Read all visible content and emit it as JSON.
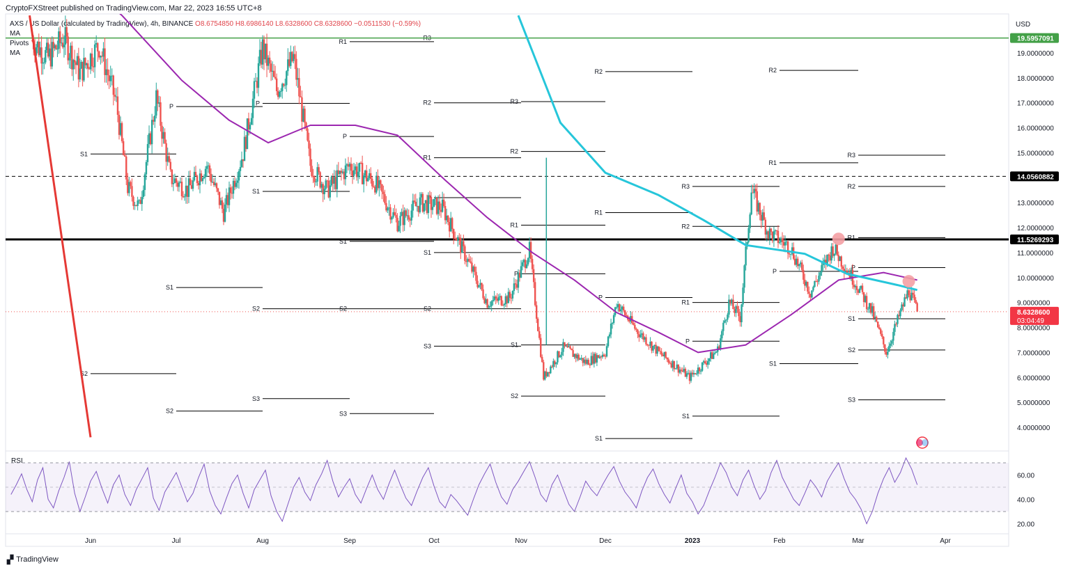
{
  "header": {
    "publisher": "CryptoFXStreet published on TradingView.com, Mar 22, 2023 16:55 UTC+8"
  },
  "legend": {
    "symbol": "AXS / US Dollar (calculated by TradingView), 4h, BINANCE",
    "open": "O8.6754850",
    "high": "H8.6986140",
    "low": "L8.6328600",
    "close": "C8.6328600",
    "change": "−0.0511530 (−0.59%)",
    "indicators": [
      "MA",
      "Pivots",
      "MA"
    ]
  },
  "axis": {
    "currency": "USD"
  },
  "price_labels": {
    "green_level": "19.5957091",
    "dashed_level": "14.0560882",
    "black_level": "11.5269293",
    "last_price": "8.6328600",
    "countdown": "03:04:49"
  },
  "footer": {
    "brand": "TradingView"
  },
  "colors": {
    "green_line": "#43a047",
    "black_line": "#000000",
    "ma_fast": "#9c27b0",
    "ma_slow": "#26c6da",
    "trendline": "#e53935",
    "candle_up": "#26a69a",
    "candle_down": "#ef5350",
    "rsi": "#7e57c2",
    "price_label_bg": "#f23645",
    "marker": "#f4a0a4"
  },
  "chart_data": {
    "type": "candlestick",
    "symbol": "AXS / US Dollar",
    "timeframe": "4h",
    "exchange": "BINANCE",
    "x_tick_labels": [
      "Jun",
      "Jul",
      "Aug",
      "Sep",
      "Oct",
      "Nov",
      "Dec",
      "2023",
      "Feb",
      "Mar",
      "Apr"
    ],
    "y_tick_labels": [
      "4.0000000",
      "5.0000000",
      "6.0000000",
      "7.0000000",
      "8.0000000",
      "9.0000000",
      "10.0000000",
      "11.0000000",
      "12.0000000",
      "13.0000000",
      "15.0000000",
      "16.0000000",
      "17.0000000",
      "18.0000000",
      "19.0000000"
    ],
    "ylim": [
      3.2,
      20.2
    ],
    "horizontal_levels": [
      {
        "value": 19.5957091,
        "style": "solid-green"
      },
      {
        "value": 14.0560882,
        "style": "dashed-black"
      },
      {
        "value": 11.5269293,
        "style": "solid-black-thick"
      },
      {
        "value": 8.63286,
        "style": "dotted-red"
      }
    ],
    "ma_slow": [
      {
        "date": "2022-10-31",
        "value": 20.5
      },
      {
        "date": "2022-11-15",
        "value": 16.2
      },
      {
        "date": "2022-12-01",
        "value": 14.2
      },
      {
        "date": "2022-12-20",
        "value": 13.3
      },
      {
        "date": "2023-01-05",
        "value": 12.3
      },
      {
        "date": "2023-01-20",
        "value": 11.3
      },
      {
        "date": "2023-02-10",
        "value": 10.95
      },
      {
        "date": "2023-02-25",
        "value": 10.15
      },
      {
        "date": "2023-03-15",
        "value": 9.7
      },
      {
        "date": "2023-03-22",
        "value": 9.5
      }
    ],
    "ma_fast": [
      {
        "date": "2022-05-01",
        "value": 24.5
      },
      {
        "date": "2022-06-12",
        "value": 20.5
      },
      {
        "date": "2022-07-03",
        "value": 17.9
      },
      {
        "date": "2022-07-20",
        "value": 16.3
      },
      {
        "date": "2022-08-03",
        "value": 15.4
      },
      {
        "date": "2022-08-18",
        "value": 16.1
      },
      {
        "date": "2022-09-03",
        "value": 16.1
      },
      {
        "date": "2022-09-18",
        "value": 15.7
      },
      {
        "date": "2022-10-05",
        "value": 13.9
      },
      {
        "date": "2022-10-20",
        "value": 12.4
      },
      {
        "date": "2022-11-05",
        "value": 11.0
      },
      {
        "date": "2022-11-20",
        "value": 9.9
      },
      {
        "date": "2022-12-05",
        "value": 8.6
      },
      {
        "date": "2022-12-20",
        "value": 7.8
      },
      {
        "date": "2023-01-03",
        "value": 7.0
      },
      {
        "date": "2023-01-20",
        "value": 7.3
      },
      {
        "date": "2023-02-05",
        "value": 8.5
      },
      {
        "date": "2023-02-22",
        "value": 9.9
      },
      {
        "date": "2023-03-10",
        "value": 10.2
      },
      {
        "date": "2023-03-22",
        "value": 9.9
      }
    ],
    "trendline": [
      {
        "date": "2022-05-09",
        "value": 20.5
      },
      {
        "date": "2022-06-01",
        "value": 3.6
      }
    ],
    "price_path": [
      {
        "date": "2022-05-10",
        "value": 19.5
      },
      {
        "date": "2022-05-16",
        "value": 18.8
      },
      {
        "date": "2022-05-22",
        "value": 19.6
      },
      {
        "date": "2022-05-28",
        "value": 18.2
      },
      {
        "date": "2022-06-04",
        "value": 19.3
      },
      {
        "date": "2022-06-10",
        "value": 17.0
      },
      {
        "date": "2022-06-14",
        "value": 13.6
      },
      {
        "date": "2022-06-18",
        "value": 12.8
      },
      {
        "date": "2022-06-24",
        "value": 17.2
      },
      {
        "date": "2022-06-29",
        "value": 14.0
      },
      {
        "date": "2022-07-05",
        "value": 13.5
      },
      {
        "date": "2022-07-12",
        "value": 14.5
      },
      {
        "date": "2022-07-18",
        "value": 12.6
      },
      {
        "date": "2022-07-25",
        "value": 15.0
      },
      {
        "date": "2022-08-01",
        "value": 19.2
      },
      {
        "date": "2022-08-06",
        "value": 17.5
      },
      {
        "date": "2022-08-12",
        "value": 18.8
      },
      {
        "date": "2022-08-18",
        "value": 14.5
      },
      {
        "date": "2022-08-24",
        "value": 13.5
      },
      {
        "date": "2022-09-01",
        "value": 14.5
      },
      {
        "date": "2022-09-10",
        "value": 13.8
      },
      {
        "date": "2022-09-18",
        "value": 12.2
      },
      {
        "date": "2022-09-26",
        "value": 13.0
      },
      {
        "date": "2022-10-04",
        "value": 12.8
      },
      {
        "date": "2022-10-12",
        "value": 10.9
      },
      {
        "date": "2022-10-20",
        "value": 9.0
      },
      {
        "date": "2022-10-28",
        "value": 9.2
      },
      {
        "date": "2022-11-04",
        "value": 11.1
      },
      {
        "date": "2022-11-09",
        "value": 6.0
      },
      {
        "date": "2022-11-16",
        "value": 7.2
      },
      {
        "date": "2022-11-24",
        "value": 6.6
      },
      {
        "date": "2022-12-01",
        "value": 7.0
      },
      {
        "date": "2022-12-05",
        "value": 9.0
      },
      {
        "date": "2022-12-12",
        "value": 7.9
      },
      {
        "date": "2022-12-20",
        "value": 7.0
      },
      {
        "date": "2022-12-31",
        "value": 6.0
      },
      {
        "date": "2023-01-10",
        "value": 7.1
      },
      {
        "date": "2023-01-14",
        "value": 9.0
      },
      {
        "date": "2023-01-18",
        "value": 8.4
      },
      {
        "date": "2023-01-22",
        "value": 13.5
      },
      {
        "date": "2023-01-28",
        "value": 11.8
      },
      {
        "date": "2023-02-05",
        "value": 11.2
      },
      {
        "date": "2023-02-12",
        "value": 9.4
      },
      {
        "date": "2023-02-20",
        "value": 11.2
      },
      {
        "date": "2023-02-28",
        "value": 9.8
      },
      {
        "date": "2023-03-06",
        "value": 8.6
      },
      {
        "date": "2023-03-11",
        "value": 7.0
      },
      {
        "date": "2023-03-16",
        "value": 8.6
      },
      {
        "date": "2023-03-19",
        "value": 9.5
      },
      {
        "date": "2023-03-22",
        "value": 8.63
      }
    ],
    "markers": [
      {
        "date": "2023-02-22",
        "value": 11.55
      },
      {
        "date": "2023-03-19",
        "value": 9.85
      }
    ],
    "pivots": [
      {
        "start": "2022-06-01",
        "end": "2022-07-01",
        "levels": [
          {
            "label": "S1",
            "value": 14.95
          },
          {
            "label": "S2",
            "value": 6.15
          }
        ]
      },
      {
        "start": "2022-07-01",
        "end": "2022-08-01",
        "levels": [
          {
            "label": "P",
            "value": 16.85
          },
          {
            "label": "S1",
            "value": 9.6
          },
          {
            "label": "S2",
            "value": 4.65
          }
        ]
      },
      {
        "start": "2022-08-01",
        "end": "2022-09-01",
        "levels": [
          {
            "label": "P",
            "value": 16.98
          },
          {
            "label": "S1",
            "value": 13.45
          },
          {
            "label": "S2",
            "value": 8.75
          },
          {
            "label": "S3",
            "value": 5.15
          }
        ]
      },
      {
        "start": "2022-09-01",
        "end": "2022-10-01",
        "levels": [
          {
            "label": "R1",
            "value": 19.45
          },
          {
            "label": "P",
            "value": 15.65
          },
          {
            "label": "S1",
            "value": 11.45
          },
          {
            "label": "S2",
            "value": 8.75
          },
          {
            "label": "S3",
            "value": 4.55
          }
        ]
      },
      {
        "start": "2022-10-01",
        "end": "2022-11-01",
        "levels": [
          {
            "label": "R3",
            "value": 19.6
          },
          {
            "label": "R2",
            "value": 17.0
          },
          {
            "label": "R1",
            "value": 14.8
          },
          {
            "label": "P",
            "value": 13.2
          },
          {
            "label": "S1",
            "value": 11.0
          },
          {
            "label": "S2",
            "value": 8.75
          },
          {
            "label": "S3",
            "value": 7.25
          }
        ]
      },
      {
        "start": "2022-11-01",
        "end": "2022-12-01",
        "levels": [
          {
            "label": "R3",
            "value": 17.05
          },
          {
            "label": "R2",
            "value": 15.05
          },
          {
            "label": "R1",
            "value": 12.1
          },
          {
            "label": "P",
            "value": 10.15
          },
          {
            "label": "S1",
            "value": 7.3
          },
          {
            "label": "S2",
            "value": 5.25
          }
        ]
      },
      {
        "start": "2022-12-01",
        "end": "2023-01-01",
        "levels": [
          {
            "label": "R2",
            "value": 18.25
          },
          {
            "label": "R1",
            "value": 12.6
          },
          {
            "label": "P",
            "value": 9.2
          },
          {
            "label": "S1",
            "value": 3.55
          }
        ]
      },
      {
        "start": "2023-01-01",
        "end": "2023-02-01",
        "levels": [
          {
            "label": "R3",
            "value": 13.65
          },
          {
            "label": "R2",
            "value": 12.05
          },
          {
            "label": "R1",
            "value": 9.0
          },
          {
            "label": "P",
            "value": 7.45
          },
          {
            "label": "S1",
            "value": 4.45
          }
        ]
      },
      {
        "start": "2023-02-01",
        "end": "2023-03-01",
        "levels": [
          {
            "label": "R2",
            "value": 18.3
          },
          {
            "label": "R1",
            "value": 14.6
          },
          {
            "label": "P",
            "value": 10.25
          },
          {
            "label": "S1",
            "value": 6.55
          }
        ]
      },
      {
        "start": "2023-03-01",
        "end": "2023-04-01",
        "levels": [
          {
            "label": "R3",
            "value": 14.9
          },
          {
            "label": "R2",
            "value": 13.65
          },
          {
            "label": "R1",
            "value": 11.6
          },
          {
            "label": "P",
            "value": 10.4
          },
          {
            "label": "S1",
            "value": 8.35
          },
          {
            "label": "S2",
            "value": 7.1
          },
          {
            "label": "S3",
            "value": 5.1
          }
        ]
      }
    ],
    "rsi": {
      "label": "RSI",
      "y_tick_labels": [
        "20.00",
        "40.00",
        "60.00"
      ],
      "ylim": [
        10,
        80
      ],
      "bands": [
        30,
        50,
        70
      ],
      "values": [
        44,
        52,
        61,
        48,
        38,
        56,
        66,
        40,
        33,
        47,
        58,
        71,
        45,
        30,
        42,
        55,
        63,
        49,
        37,
        52,
        60,
        44,
        35,
        48,
        57,
        66,
        41,
        31,
        46,
        54,
        62,
        50,
        38,
        45,
        58,
        69,
        47,
        35,
        28,
        41,
        53,
        60,
        45,
        33,
        48,
        56,
        64,
        43,
        30,
        22,
        36,
        50,
        58,
        46,
        39,
        52,
        61,
        72,
        55,
        42,
        50,
        57,
        44,
        37,
        49,
        60,
        48,
        40,
        53,
        64,
        52,
        41,
        35,
        47,
        58,
        66,
        51,
        38,
        33,
        44,
        39,
        33,
        27,
        40,
        52,
        61,
        69,
        54,
        42,
        36,
        48,
        55,
        63,
        71,
        58,
        44,
        38,
        52,
        60,
        48,
        36,
        30,
        42,
        55,
        48,
        43,
        52,
        60,
        67,
        55,
        46,
        40,
        33,
        47,
        58,
        65,
        53,
        44,
        37,
        49,
        60,
        45,
        38,
        28,
        35,
        47,
        58,
        70,
        62,
        50,
        43,
        56,
        64,
        51,
        40,
        47,
        62,
        72,
        58,
        49,
        40,
        35,
        45,
        56,
        50,
        42,
        55,
        63,
        70,
        57,
        46,
        40,
        32,
        20,
        30,
        45,
        57,
        66,
        54,
        62,
        74,
        65,
        52
      ]
    }
  }
}
